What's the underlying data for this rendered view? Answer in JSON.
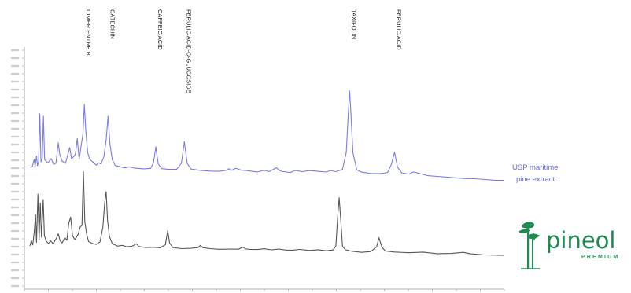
{
  "chart_data": {
    "type": "line",
    "x_range": [
      0,
      100
    ],
    "y_range": [
      0,
      100
    ],
    "peaks": [
      {
        "label": "DIMER ENTRE B",
        "x": 11.5
      },
      {
        "label": "CATECHIN",
        "x": 16.5
      },
      {
        "label": "CAFFEIC ACID",
        "x": 26.6
      },
      {
        "label": "FERULIC ACID-O-GLUCOSIDE",
        "x": 32.6
      },
      {
        "label": "TAXIFOLIN",
        "x": 67.5
      },
      {
        "label": "FERULIC ACID",
        "x": 77.0
      }
    ],
    "series": [
      {
        "name": "USP maritime pine extract",
        "color": "#7b7be6",
        "points": [
          [
            0,
            0
          ],
          [
            0.5,
            0.5
          ],
          [
            0.9,
            7
          ],
          [
            1.1,
            1
          ],
          [
            1.4,
            10
          ],
          [
            1.6,
            1.5
          ],
          [
            1.85,
            5
          ],
          [
            2.1,
            47
          ],
          [
            2.35,
            5
          ],
          [
            2.6,
            8
          ],
          [
            2.85,
            45
          ],
          [
            3.1,
            7
          ],
          [
            3.8,
            4
          ],
          [
            4.5,
            8
          ],
          [
            5.0,
            3
          ],
          [
            5.5,
            4
          ],
          [
            6.0,
            22
          ],
          [
            6.3,
            12
          ],
          [
            6.8,
            6
          ],
          [
            7.5,
            4
          ],
          [
            8.4,
            18
          ],
          [
            8.8,
            8
          ],
          [
            9.6,
            12
          ],
          [
            10.0,
            26
          ],
          [
            10.4,
            8
          ],
          [
            11.2,
            30
          ],
          [
            11.5,
            56
          ],
          [
            11.8,
            34
          ],
          [
            12.2,
            14
          ],
          [
            12.6,
            8
          ],
          [
            13.2,
            6
          ],
          [
            14.0,
            3
          ],
          [
            14.5,
            5
          ],
          [
            15.0,
            4
          ],
          [
            15.6,
            10
          ],
          [
            16.1,
            25
          ],
          [
            16.5,
            46
          ],
          [
            16.9,
            22
          ],
          [
            17.4,
            8
          ],
          [
            18.0,
            3
          ],
          [
            19.0,
            2
          ],
          [
            20.0,
            1
          ],
          [
            21.0,
            2
          ],
          [
            22.0,
            1
          ],
          [
            24.0,
            0.5
          ],
          [
            25.5,
            1
          ],
          [
            26.1,
            6
          ],
          [
            26.6,
            20
          ],
          [
            27.1,
            5
          ],
          [
            27.8,
            1
          ],
          [
            29.0,
            0.5
          ],
          [
            31.0,
            0.5
          ],
          [
            32.0,
            6
          ],
          [
            32.6,
            25
          ],
          [
            33.2,
            6
          ],
          [
            34.0,
            1
          ],
          [
            36.0,
            0
          ],
          [
            38.0,
            -0.5
          ],
          [
            40.0,
            -0.5
          ],
          [
            41.5,
            0.5
          ],
          [
            42.0,
            2
          ],
          [
            42.5,
            0.5
          ],
          [
            43.5,
            2.5
          ],
          [
            44.5,
            1
          ],
          [
            46.0,
            0.5
          ],
          [
            48.0,
            -0.5
          ],
          [
            49.5,
            1
          ],
          [
            50.5,
            0
          ],
          [
            52.0,
            3.5
          ],
          [
            53.0,
            0.5
          ],
          [
            55.0,
            -0.5
          ],
          [
            56.0,
            1.5
          ],
          [
            57.5,
            0.5
          ],
          [
            59.0,
            1.5
          ],
          [
            61.0,
            1
          ],
          [
            62.5,
            0.5
          ],
          [
            63.5,
            2
          ],
          [
            64.5,
            1
          ],
          [
            66.0,
            3
          ],
          [
            66.8,
            18
          ],
          [
            67.2,
            50
          ],
          [
            67.5,
            72
          ],
          [
            67.8,
            50
          ],
          [
            68.2,
            18
          ],
          [
            69.0,
            3
          ],
          [
            70.0,
            1
          ],
          [
            72.0,
            0
          ],
          [
            74.0,
            0
          ],
          [
            75.5,
            1
          ],
          [
            76.3,
            8
          ],
          [
            77.0,
            19
          ],
          [
            77.6,
            6
          ],
          [
            78.5,
            1
          ],
          [
            80.0,
            0
          ],
          [
            81.0,
            2
          ],
          [
            82.0,
            1
          ],
          [
            84.0,
            -1
          ],
          [
            86.0,
            -1.5
          ],
          [
            88.0,
            -2
          ],
          [
            90.0,
            -2.5
          ],
          [
            92.0,
            -3
          ],
          [
            94.0,
            -3
          ],
          [
            96.0,
            -3.5
          ],
          [
            98.0,
            -4
          ],
          [
            100.0,
            -4
          ]
        ]
      },
      {
        "name": "pineol",
        "color": "#555555",
        "points": [
          [
            0,
            0
          ],
          [
            0.3,
            6
          ],
          [
            0.6,
            1
          ],
          [
            0.9,
            15
          ],
          [
            1.2,
            35
          ],
          [
            1.4,
            4
          ],
          [
            1.7,
            58
          ],
          [
            1.95,
            7
          ],
          [
            2.2,
            48
          ],
          [
            2.45,
            10
          ],
          [
            2.8,
            52
          ],
          [
            3.05,
            12
          ],
          [
            3.4,
            6
          ],
          [
            3.9,
            3
          ],
          [
            4.4,
            6
          ],
          [
            4.9,
            3
          ],
          [
            5.6,
            9
          ],
          [
            6.0,
            14
          ],
          [
            6.4,
            6
          ],
          [
            6.8,
            4
          ],
          [
            7.4,
            10
          ],
          [
            7.8,
            7
          ],
          [
            8.2,
            26
          ],
          [
            8.6,
            33
          ],
          [
            9.0,
            12
          ],
          [
            9.5,
            8
          ],
          [
            10.2,
            14
          ],
          [
            10.6,
            22
          ],
          [
            11.0,
            24
          ],
          [
            11.3,
            84
          ],
          [
            11.6,
            28
          ],
          [
            12.0,
            14
          ],
          [
            12.4,
            6
          ],
          [
            13.2,
            4
          ],
          [
            14.0,
            3
          ],
          [
            14.8,
            6
          ],
          [
            15.4,
            22
          ],
          [
            15.8,
            50
          ],
          [
            16.1,
            62
          ],
          [
            16.4,
            30
          ],
          [
            16.8,
            12
          ],
          [
            17.4,
            4
          ],
          [
            18.5,
            1.5
          ],
          [
            19.5,
            2.5
          ],
          [
            20.5,
            1
          ],
          [
            21.5,
            1.5
          ],
          [
            22.5,
            4.5
          ],
          [
            23.0,
            1.5
          ],
          [
            24.5,
            0.5
          ],
          [
            26.0,
            1
          ],
          [
            27.5,
            0.5
          ],
          [
            28.6,
            4
          ],
          [
            29.1,
            20
          ],
          [
            29.5,
            6
          ],
          [
            30.2,
            1
          ],
          [
            32.0,
            0
          ],
          [
            34.0,
            0.5
          ],
          [
            35.5,
            1.5
          ],
          [
            36.0,
            4
          ],
          [
            36.5,
            1.5
          ],
          [
            38.0,
            0.5
          ],
          [
            40.0,
            0
          ],
          [
            42.5,
            0.5
          ],
          [
            44.0,
            0.5
          ],
          [
            45.0,
            3
          ],
          [
            45.5,
            1
          ],
          [
            46.5,
            0.5
          ],
          [
            48.0,
            0.5
          ],
          [
            49.5,
            1.5
          ],
          [
            51.0,
            0.5
          ],
          [
            52.5,
            1.5
          ],
          [
            54.0,
            0.5
          ],
          [
            55.5,
            0.5
          ],
          [
            57.0,
            1.5
          ],
          [
            59.0,
            0.5
          ],
          [
            61.0,
            1.5
          ],
          [
            62.5,
            0.5
          ],
          [
            64.0,
            1.5
          ],
          [
            64.6,
            6
          ],
          [
            65.0,
            40
          ],
          [
            65.3,
            60
          ],
          [
            65.6,
            38
          ],
          [
            66.0,
            6
          ],
          [
            66.6,
            2
          ],
          [
            68.0,
            0.5
          ],
          [
            70.0,
            -0.5
          ],
          [
            72.0,
            0.5
          ],
          [
            73.2,
            6
          ],
          [
            73.7,
            16
          ],
          [
            74.3,
            6
          ],
          [
            75.0,
            1.5
          ],
          [
            77.0,
            0.5
          ],
          [
            80.0,
            0
          ],
          [
            83.0,
            1
          ],
          [
            86.0,
            -0.5
          ],
          [
            89.0,
            0
          ],
          [
            91.5,
            1.5
          ],
          [
            93.0,
            0
          ],
          [
            96.0,
            -1
          ],
          [
            100.0,
            -1
          ]
        ]
      }
    ]
  },
  "legend": {
    "label_line1": "USP maritime",
    "label_line2": "pine extract"
  },
  "logo": {
    "name": "pineol",
    "tagline": "PREMIUM",
    "primary_color": "#1f8b52"
  }
}
